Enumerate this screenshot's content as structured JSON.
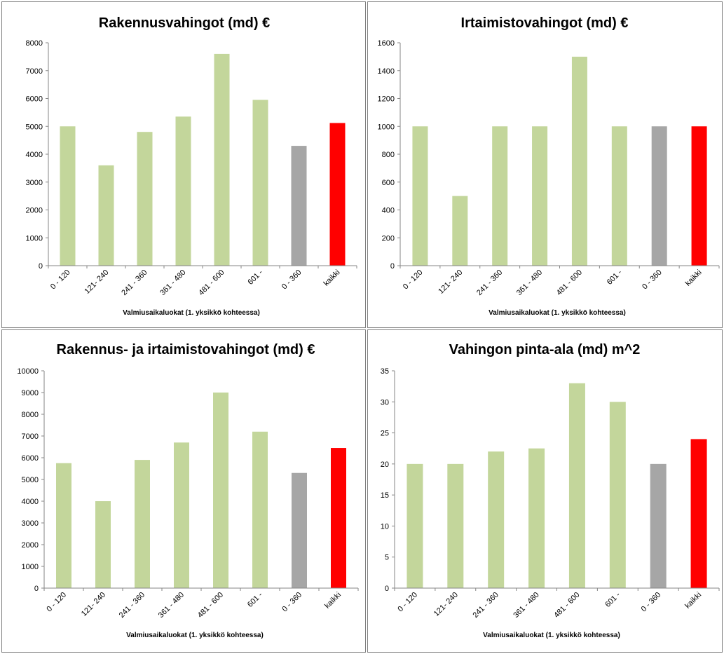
{
  "colors": {
    "default": "#c3d69b",
    "gray": "#a6a6a6",
    "red": "#ff0000"
  },
  "chart_data": [
    {
      "type": "bar",
      "title": "Rakennusvahingot (md) €",
      "xlabel": "Valmiusaikaluokat  (1. yksikkö kohteessa)",
      "ylabel": "",
      "categories": [
        "0 - 120",
        "121- 240",
        "241 - 360",
        "361 - 480",
        "481 - 600",
        "601 -",
        "0 - 360",
        "kaikki"
      ],
      "values": [
        5000,
        3600,
        4800,
        5350,
        7600,
        5950,
        4300,
        5120
      ],
      "bar_colors": [
        "default",
        "default",
        "default",
        "default",
        "default",
        "default",
        "gray",
        "red"
      ],
      "ylim": [
        0,
        8000
      ],
      "yticks": [
        "0",
        "1000",
        "2000",
        "3000",
        "4000",
        "5000",
        "6000",
        "7000",
        "8000"
      ],
      "grid": false,
      "legend": "none"
    },
    {
      "type": "bar",
      "title": "Irtaimistovahingot (md) €",
      "xlabel": "Valmiusaikaluokat  (1. yksikkö kohteessa)",
      "ylabel": "",
      "categories": [
        "0 - 120",
        "121- 240",
        "241 - 360",
        "361 - 480",
        "481 - 600",
        "601 -",
        "0 - 360",
        "kaikki"
      ],
      "values": [
        1000,
        500,
        1000,
        1000,
        1500,
        1000,
        1000,
        1000
      ],
      "bar_colors": [
        "default",
        "default",
        "default",
        "default",
        "default",
        "default",
        "gray",
        "red"
      ],
      "ylim": [
        0,
        1600
      ],
      "yticks": [
        "0",
        "200",
        "400",
        "600",
        "800",
        "1000",
        "1200",
        "1400",
        "1600"
      ],
      "grid": false,
      "legend": "none"
    },
    {
      "type": "bar",
      "title": "Rakennus- ja irtaimistovahingot (md) €",
      "xlabel": "Valmiusaikaluokat  (1. yksikkö kohteessa)",
      "ylabel": "",
      "categories": [
        "0 - 120",
        "121- 240",
        "241 - 360",
        "361 - 480",
        "481 - 600",
        "601 -",
        "0 - 360",
        "kaikki"
      ],
      "values": [
        5750,
        4000,
        5900,
        6700,
        9000,
        7200,
        5300,
        6450
      ],
      "bar_colors": [
        "default",
        "default",
        "default",
        "default",
        "default",
        "default",
        "gray",
        "red"
      ],
      "ylim": [
        0,
        10000
      ],
      "yticks": [
        "0",
        "1000",
        "2000",
        "3000",
        "4000",
        "5000",
        "6000",
        "7000",
        "8000",
        "9000",
        "10000"
      ],
      "grid": false,
      "legend": "none"
    },
    {
      "type": "bar",
      "title": "Vahingon pinta-ala (md) m^2",
      "xlabel": "Valmiusaikaluokat  (1. yksikkö kohteessa)",
      "ylabel": "",
      "categories": [
        "0 - 120",
        "121- 240",
        "241 - 360",
        "361 - 480",
        "481 - 600",
        "601 -",
        "0 - 360",
        "kaikki"
      ],
      "values": [
        20,
        20,
        22,
        22.5,
        33,
        30,
        20,
        24
      ],
      "bar_colors": [
        "default",
        "default",
        "default",
        "default",
        "default",
        "default",
        "gray",
        "red"
      ],
      "ylim": [
        0,
        35
      ],
      "yticks": [
        "0",
        "5",
        "10",
        "15",
        "20",
        "25",
        "30",
        "35"
      ],
      "grid": false,
      "legend": "none"
    }
  ]
}
